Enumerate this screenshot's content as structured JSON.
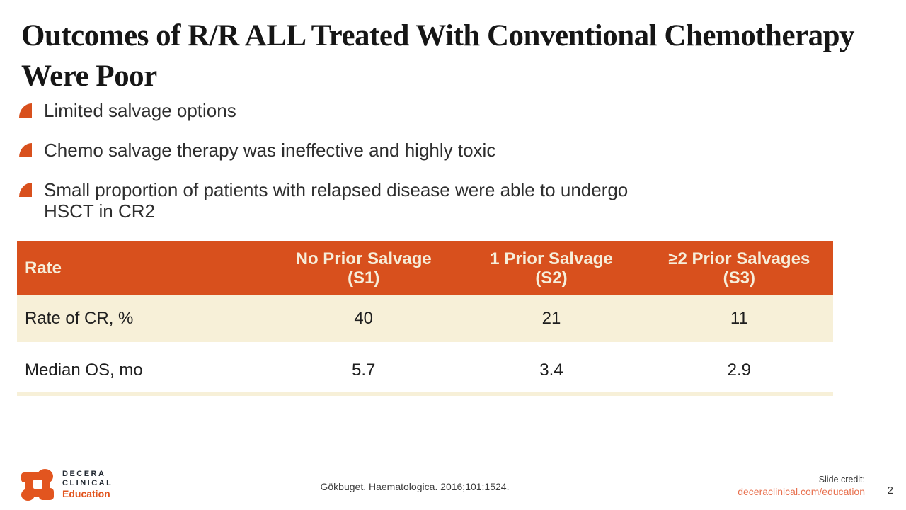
{
  "title": {
    "line1": "Outcomes of R/R ALL Treated With Conventional Chemotherapy",
    "line2": "Were Poor"
  },
  "bullets": {
    "b1": "Limited salvage options",
    "b2": "Chemo salvage therapy was ineffective and highly toxic",
    "b3_line1": "Small proportion of patients with relapsed disease were able to undergo",
    "b3_line2": "HSCT in CR2"
  },
  "table": {
    "header": {
      "c0": "Rate",
      "c1l1": "No Prior Salvage",
      "c1l2": "(S1)",
      "c2l1": "1 Prior Salvage",
      "c2l2": "(S2)",
      "c3l1": "≥2 Prior Salvages",
      "c3l2": "(S3)"
    },
    "rows": [
      {
        "label": "Rate of CR, %",
        "v1": "40",
        "v2": "21",
        "v3": "11"
      },
      {
        "label": "Median OS, mo",
        "v1": "5.7",
        "v2": "3.4",
        "v3": "2.9"
      }
    ]
  },
  "footer": {
    "logo_line1": "DECERA",
    "logo_line2": "CLINICAL",
    "logo_line3": "Education",
    "citation": "Gökbuget. Haematologica. 2016;101:1524.",
    "credit_label": "Slide credit:",
    "credit_link": "deceraclinical.com/education",
    "page_number": "2"
  },
  "colors": {
    "accent_orange": "#D8501D",
    "cream": "#F7F0D8",
    "header_text": "#F6EEDA",
    "logo_orange": "#E2551F",
    "link_orange": "#E8714F",
    "title_text": "#161616",
    "body_text": "#2E2E2E",
    "footer_text": "#3C3C3C"
  }
}
